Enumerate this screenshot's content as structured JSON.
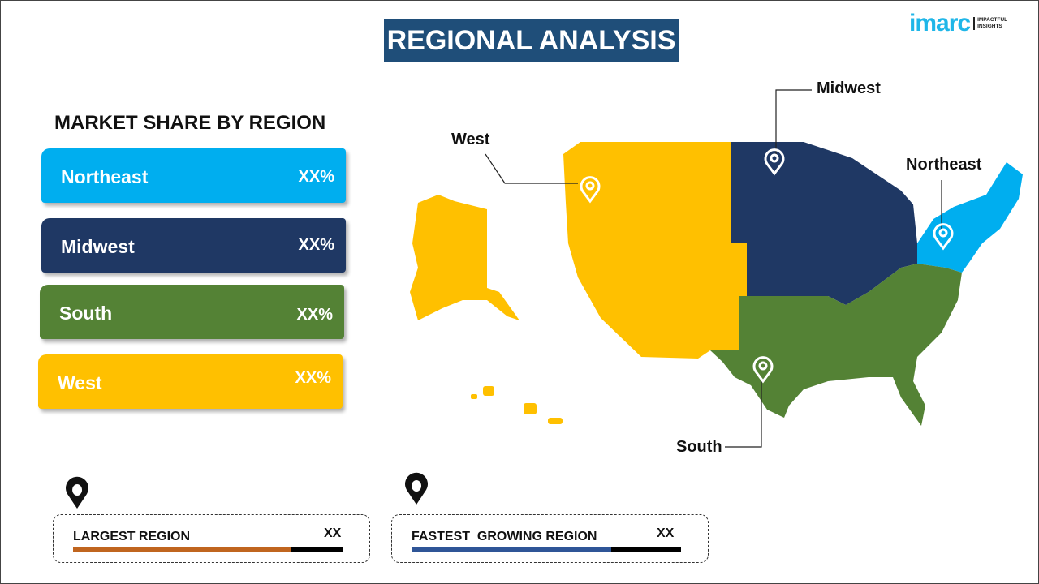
{
  "title": "REGIONAL ANALYSIS",
  "logo": {
    "brand": "imarc",
    "tagline_1": "IMPACTFUL",
    "tagline_2": "INSIGHTS"
  },
  "subtitle": "MARKET SHARE BY REGION",
  "regions": [
    {
      "name": "Northeast",
      "value": "XX%",
      "color": "#00aeef"
    },
    {
      "name": "Midwest",
      "value": "XX%",
      "color": "#1f3864"
    },
    {
      "name": "South",
      "value": "XX%",
      "color": "#548235"
    },
    {
      "name": "West",
      "value": "XX%",
      "color": "#ffc000"
    }
  ],
  "map_labels": {
    "west": "West",
    "midwest": "Midwest",
    "northeast": "Northeast",
    "south": "South"
  },
  "largest": {
    "label": "LARGEST REGION",
    "value": "XX",
    "bar_color": "#c0651f",
    "fill_percent": 81
  },
  "fastest": {
    "label": "FASTEST  GROWING REGION",
    "value": "XX",
    "bar_color": "#2f5597",
    "fill_percent": 74
  },
  "icons": [
    "map-pin-icon"
  ]
}
